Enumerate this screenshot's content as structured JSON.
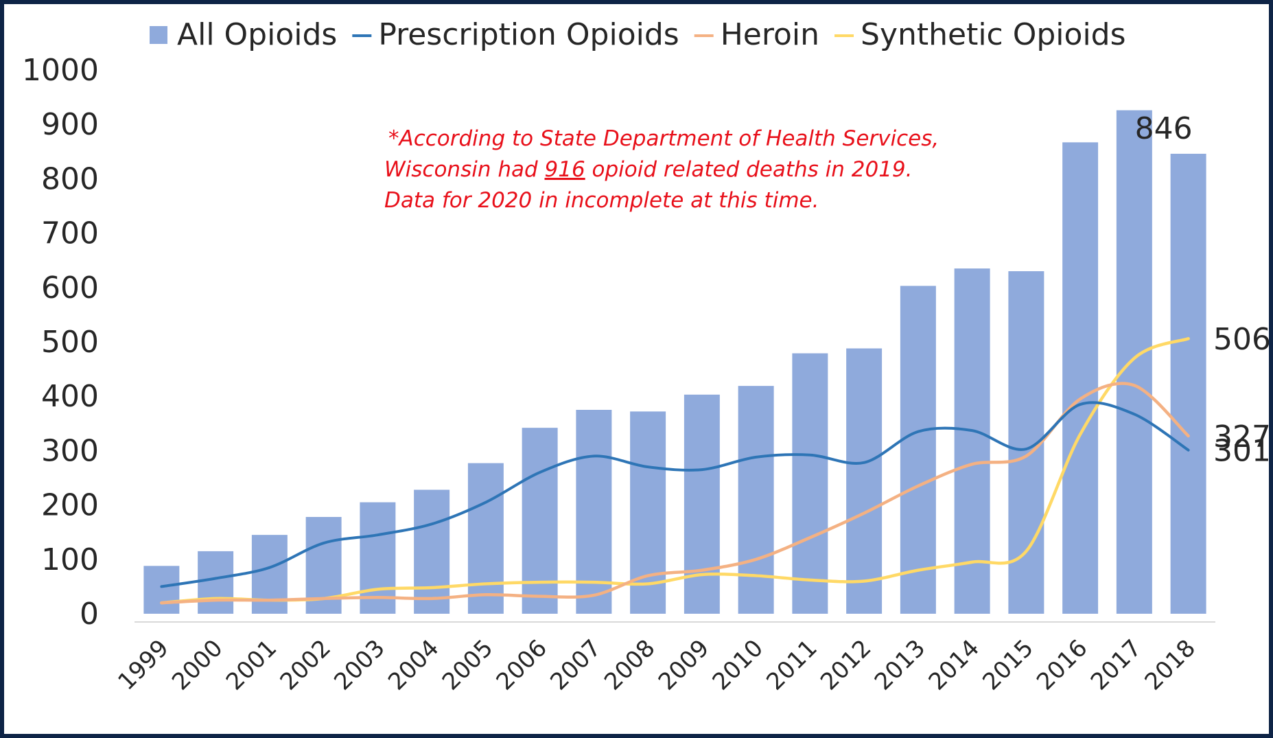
{
  "chart_data": {
    "type": "bar",
    "title": "",
    "xlabel": "",
    "ylabel": "",
    "ylim": [
      0,
      1000
    ],
    "yticks": [
      0,
      100,
      200,
      300,
      400,
      500,
      600,
      700,
      800,
      900,
      1000
    ],
    "grid": false,
    "legend_position": "top",
    "categories": [
      "1999",
      "2000",
      "2001",
      "2002",
      "2003",
      "2004",
      "2005",
      "2006",
      "2007",
      "2008",
      "2009",
      "2010",
      "2011",
      "2012",
      "2013",
      "2014",
      "2015",
      "2016",
      "2017",
      "2018"
    ],
    "bars": {
      "name": "All Opioids",
      "color": "#8faadc",
      "values": [
        88,
        115,
        145,
        178,
        205,
        228,
        277,
        342,
        375,
        372,
        403,
        419,
        479,
        488,
        603,
        635,
        630,
        867,
        926,
        846
      ]
    },
    "series": [
      {
        "name": "Prescription Opioids",
        "color": "#2e75b6",
        "values": [
          50,
          65,
          85,
          130,
          145,
          165,
          205,
          260,
          290,
          270,
          265,
          288,
          292,
          278,
          335,
          337,
          303,
          385,
          367,
          301
        ]
      },
      {
        "name": "Heroin",
        "color": "#f4b183",
        "values": [
          20,
          25,
          25,
          28,
          30,
          28,
          35,
          32,
          34,
          70,
          80,
          100,
          140,
          185,
          235,
          275,
          290,
          395,
          420,
          327
        ]
      },
      {
        "name": "Synthetic Opioids",
        "color": "#ffd966",
        "values": [
          20,
          28,
          25,
          28,
          45,
          48,
          55,
          58,
          58,
          55,
          72,
          70,
          62,
          60,
          80,
          95,
          115,
          330,
          470,
          506
        ]
      }
    ],
    "end_labels": [
      {
        "series": "All Opioids",
        "text": "846"
      },
      {
        "series": "Synthetic Opioids",
        "text": "506"
      },
      {
        "series": "Heroin",
        "text": "327"
      },
      {
        "series": "Prescription Opioids",
        "text": "301"
      }
    ],
    "annotation": {
      "line1": "*According to State Department of Health Services,",
      "line2_pre": "Wisconsin had ",
      "line2_highlight": "916",
      "line2_post": " opioid related deaths in 2019.",
      "line3": "Data for 2020 in incomplete at this time.",
      "color": "#e8101a"
    }
  }
}
